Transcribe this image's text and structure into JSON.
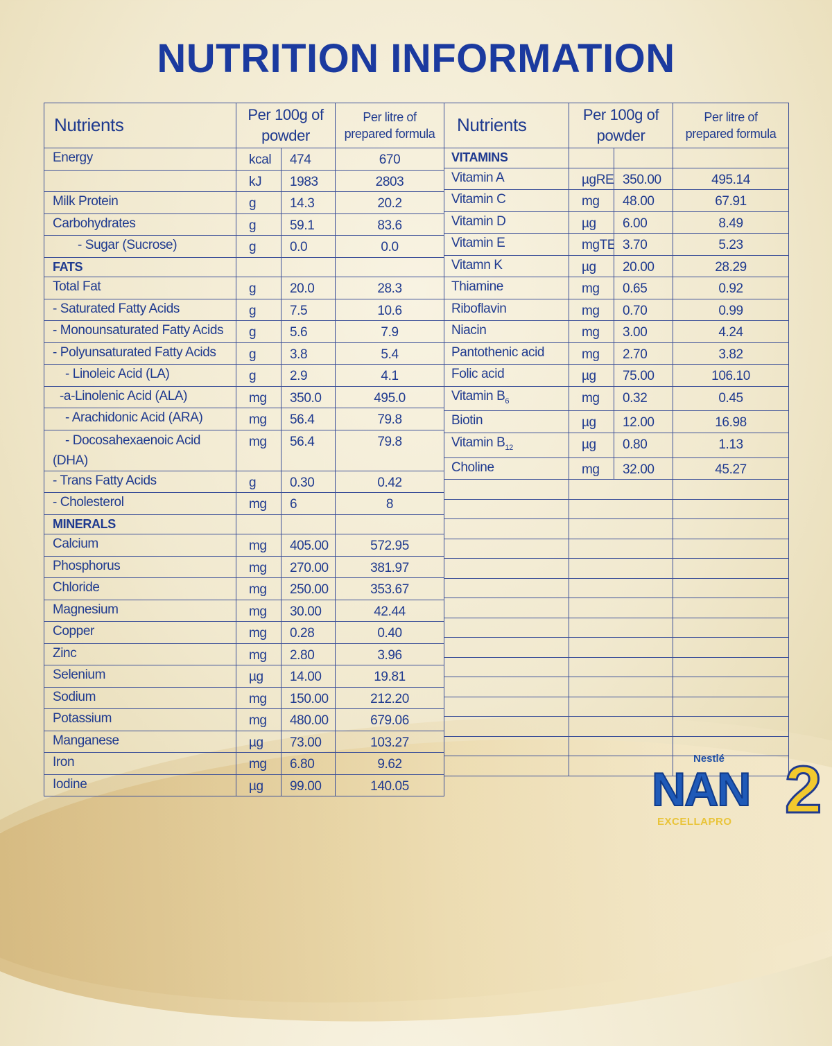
{
  "title": "NUTRITION INFORMATION",
  "headers": {
    "nutrients": "Nutrients",
    "per100": "Per 100g of powder",
    "perLitre": "Per litre of prepared formula"
  },
  "left_rows": [
    {
      "name": "Energy",
      "unit": "kcal",
      "per100": "474",
      "perLitre": "670"
    },
    {
      "name": "",
      "unit": "kJ",
      "per100": "1983",
      "perLitre": "2803"
    },
    {
      "name": "Milk Protein",
      "unit": "g",
      "per100": "14.3",
      "perLitre": "20.2"
    },
    {
      "name": "Carbohydrates",
      "unit": "g",
      "per100": "59.1",
      "perLitre": "83.6"
    },
    {
      "name": "- Sugar (Sucrose)",
      "indent": 1,
      "unit": "g",
      "per100": "0.0",
      "perLitre": "0.0"
    },
    {
      "name": "FATS",
      "section": true
    },
    {
      "name": "Total Fat",
      "unit": "g",
      "per100": "20.0",
      "perLitre": "28.3"
    },
    {
      "name": "- Saturated Fatty Acids",
      "unit": "g",
      "per100": "7.5",
      "perLitre": "10.6"
    },
    {
      "name": "- Monounsaturated Fatty Acids",
      "unit": "g",
      "per100": "5.6",
      "perLitre": "7.9"
    },
    {
      "name": "- Polyunsaturated Fatty Acids",
      "unit": "g",
      "per100": "3.8",
      "perLitre": "5.4"
    },
    {
      "name": "- Linoleic Acid (LA)",
      "indent": 2,
      "unit": "g",
      "per100": "2.9",
      "perLitre": "4.1"
    },
    {
      "name": "-a-Linolenic Acid (ALA)",
      "indent": 3,
      "unit": "mg",
      "per100": "350.0",
      "perLitre": "495.0"
    },
    {
      "name": "- Arachidonic Acid (ARA)",
      "indent": 2,
      "unit": "mg",
      "per100": "56.4",
      "perLitre": "79.8"
    },
    {
      "name": "- Docosahexaenoic Acid",
      "name2": "(DHA)",
      "indent": 2,
      "double": true,
      "unit": "mg",
      "per100": "56.4",
      "perLitre": "79.8"
    },
    {
      "name": "- Trans Fatty Acids",
      "unit": "g",
      "per100": "0.30",
      "perLitre": "0.42"
    },
    {
      "name": "- Cholesterol",
      "unit": "mg",
      "per100": "6",
      "perLitre": "8"
    },
    {
      "name": "MINERALS",
      "section": true
    },
    {
      "name": "Calcium",
      "unit": "mg",
      "per100": "405.00",
      "perLitre": "572.95"
    },
    {
      "name": "Phosphorus",
      "unit": "mg",
      "per100": "270.00",
      "perLitre": "381.97"
    },
    {
      "name": "Chloride",
      "unit": "mg",
      "per100": "250.00",
      "perLitre": "353.67"
    },
    {
      "name": "Magnesium",
      "unit": "mg",
      "per100": "30.00",
      "perLitre": "42.44"
    },
    {
      "name": "Copper",
      "unit": "mg",
      "per100": "0.28",
      "perLitre": "0.40"
    },
    {
      "name": "Zinc",
      "unit": "mg",
      "per100": "2.80",
      "perLitre": "3.96"
    },
    {
      "name": "Selenium",
      "unit": "µg",
      "per100": "14.00",
      "perLitre": "19.81"
    },
    {
      "name": "Sodium",
      "unit": "mg",
      "per100": "150.00",
      "perLitre": "212.20"
    },
    {
      "name": "Potassium",
      "unit": "mg",
      "per100": "480.00",
      "perLitre": "679.06"
    },
    {
      "name": "Manganese",
      "unit": "µg",
      "per100": "73.00",
      "perLitre": "103.27"
    },
    {
      "name": "Iron",
      "unit": "mg",
      "per100": "6.80",
      "perLitre": "9.62"
    },
    {
      "name": "Iodine",
      "unit": "µg",
      "per100": "99.00",
      "perLitre": "140.05"
    }
  ],
  "right_rows": [
    {
      "name": "VITAMINS",
      "section": true
    },
    {
      "name": "Vitamin A",
      "unit": "µgRE",
      "per100": "350.00",
      "perLitre": "495.14"
    },
    {
      "name": "Vitamin C",
      "unit": "mg",
      "per100": "48.00",
      "perLitre": "67.91"
    },
    {
      "name": "Vitamin D",
      "unit": "µg",
      "per100": "6.00",
      "perLitre": "8.49"
    },
    {
      "name": "Vitamin E",
      "unit": "mgTE",
      "per100": "3.70",
      "perLitre": "5.23"
    },
    {
      "name": "Vitamn K",
      "unit": "µg",
      "per100": "20.00",
      "perLitre": "28.29"
    },
    {
      "name": "Thiamine",
      "unit": "mg",
      "per100": "0.65",
      "perLitre": "0.92"
    },
    {
      "name": "Riboflavin",
      "unit": "mg",
      "per100": "0.70",
      "perLitre": "0.99"
    },
    {
      "name": "Niacin",
      "unit": "mg",
      "per100": "3.00",
      "perLitre": "4.24"
    },
    {
      "name": "Pantothenic acid",
      "unit": "mg",
      "per100": "2.70",
      "perLitre": "3.82"
    },
    {
      "name": "Folic acid",
      "unit": "µg",
      "per100": "75.00",
      "perLitre": "106.10"
    },
    {
      "name": "Vitamin B",
      "sub": "6",
      "unit": "mg",
      "per100": "0.32",
      "perLitre": "0.45"
    },
    {
      "name": "Biotin",
      "unit": "µg",
      "per100": "12.00",
      "perLitre": "16.98"
    },
    {
      "name": "Vitamin B",
      "sub": "12",
      "unit": "µg",
      "per100": "0.80",
      "perLitre": "1.13"
    },
    {
      "name": "Choline",
      "unit": "mg",
      "per100": "32.00",
      "perLitre": "45.27"
    }
  ],
  "logo": {
    "brand": "Nestlé",
    "product": "NAN",
    "line": "EXCELLAPRO",
    "stage": "2"
  },
  "colors": {
    "text": "#1f3a8f",
    "title": "#1b3a9f",
    "background": "#f1e9cf",
    "accent_gold": "#f2c92e"
  }
}
